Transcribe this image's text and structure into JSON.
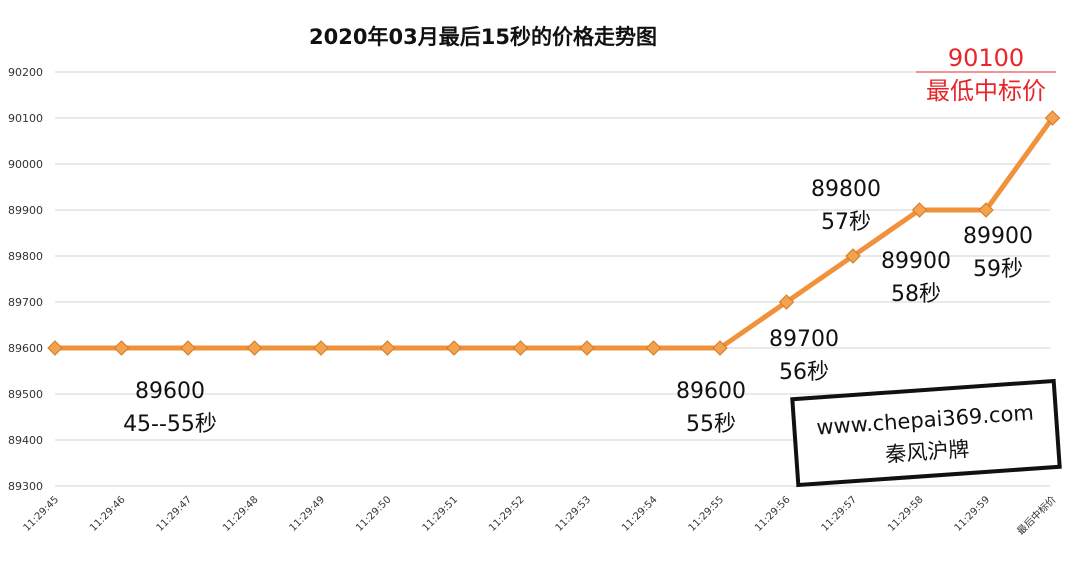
{
  "chart_data": {
    "type": "line",
    "title": "2020年03月最后15秒的价格走势图",
    "xlabel": "",
    "ylabel": "",
    "ylim": [
      89300,
      90200
    ],
    "ytick_step": 100,
    "yticks": [
      "90200",
      "90100",
      "90000",
      "89900",
      "89800",
      "89700",
      "89600",
      "89500",
      "89400",
      "89300"
    ],
    "grid": true,
    "line_color": "#f0913b",
    "marker_color": "#f3a24e",
    "categories": [
      "11:29:45",
      "11:29:46",
      "11:29:47",
      "11:29:48",
      "11:29:49",
      "11:29:50",
      "11:29:51",
      "11:29:52",
      "11:29:53",
      "11:29:54",
      "11:29:55",
      "11:29:56",
      "11:29:57",
      "11:29:58",
      "11:29:59",
      "最后中标价"
    ],
    "series": [
      {
        "values": [
          89600,
          89600,
          89600,
          89600,
          89600,
          89600,
          89600,
          89600,
          89600,
          89600,
          89600,
          89700,
          89800,
          89900,
          89900,
          90100
        ]
      }
    ],
    "annotations": [
      {
        "lines": [
          "89600",
          "45--55秒"
        ],
        "color": "#111111"
      },
      {
        "lines": [
          "89600",
          "55秒"
        ],
        "color": "#111111"
      },
      {
        "lines": [
          "89700",
          "56秒"
        ],
        "color": "#111111"
      },
      {
        "lines": [
          "89800",
          "57秒"
        ],
        "color": "#111111"
      },
      {
        "lines": [
          "89900",
          "58秒"
        ],
        "color": "#111111"
      },
      {
        "lines": [
          "89900",
          "59秒"
        ],
        "color": "#111111"
      },
      {
        "lines": [
          "90100",
          "最低中标价"
        ],
        "color": "#e8262a"
      }
    ]
  },
  "watermark": {
    "lines": [
      "www.chepai369.com",
      "秦风沪牌"
    ]
  }
}
